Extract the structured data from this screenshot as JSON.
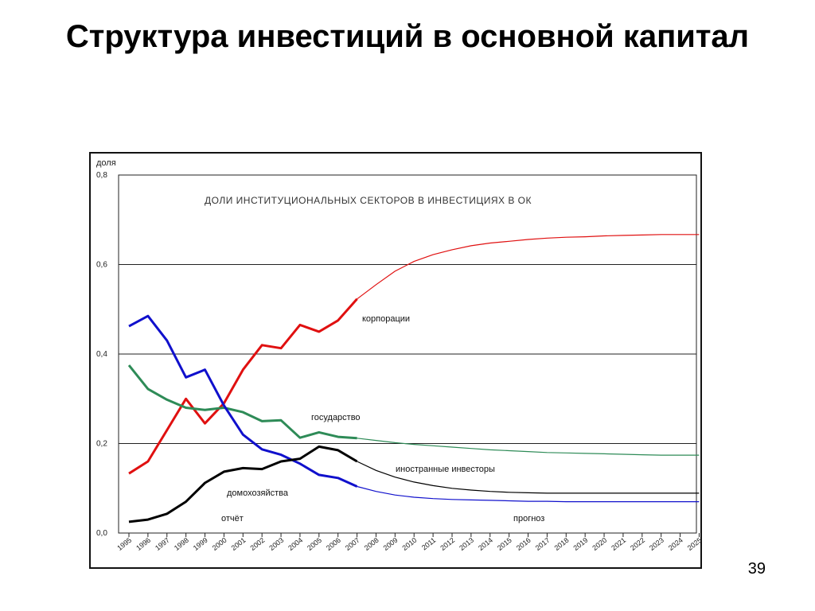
{
  "slide": {
    "title": "Структура инвестиций в основной капитал",
    "page_number": "39"
  },
  "chart_data": {
    "type": "line",
    "title": "ДОЛИ ИНСТИТУЦИОНАЛЬНЫХ СЕКТОРОВ В ИНВЕСТИЦИЯХ В ОК",
    "ylabel": "доля",
    "xlabel": "",
    "ylim": [
      0,
      0.8
    ],
    "yticks": [
      "0,0",
      "0,2",
      "0,4",
      "0,6",
      "0,8"
    ],
    "grid": "horizontal",
    "categories": [
      "1995",
      "1996",
      "1997",
      "1998",
      "1999",
      "2000",
      "2001",
      "2002",
      "2003",
      "2004",
      "2005",
      "2006",
      "2007",
      "2008",
      "2009",
      "2010",
      "2011",
      "2012",
      "2013",
      "2014",
      "2015",
      "2016",
      "2017",
      "2018",
      "2019",
      "2020",
      "2021",
      "2022",
      "2023",
      "2024",
      "2025"
    ],
    "report_label": "отчёт",
    "forecast_label": "прогноз",
    "series": [
      {
        "name": "корпорации",
        "color": "#e01010",
        "actual_end_index": 13,
        "values": [
          0.133,
          0.16,
          0.23,
          0.3,
          0.245,
          0.29,
          0.365,
          0.42,
          0.413,
          0.465,
          0.45,
          0.475,
          0.523,
          0.555,
          0.585,
          0.607,
          0.622,
          0.633,
          0.642,
          0.648,
          0.652,
          0.656,
          0.659,
          0.661,
          0.662,
          0.664,
          0.665,
          0.666,
          0.667,
          0.667,
          0.667
        ]
      },
      {
        "name": "государство",
        "color": "#2e8b57",
        "actual_end_index": 13,
        "values": [
          0.375,
          0.322,
          0.298,
          0.28,
          0.275,
          0.28,
          0.27,
          0.25,
          0.252,
          0.213,
          0.225,
          0.215,
          0.212,
          0.207,
          0.202,
          0.198,
          0.195,
          0.192,
          0.189,
          0.186,
          0.184,
          0.182,
          0.18,
          0.179,
          0.178,
          0.177,
          0.176,
          0.175,
          0.174,
          0.174,
          0.174
        ]
      },
      {
        "name": "иностранные инвесторы",
        "color": "#1010cc",
        "actual_end_index": 13,
        "values": [
          0.462,
          0.485,
          0.43,
          0.348,
          0.365,
          0.285,
          0.22,
          0.187,
          0.175,
          0.155,
          0.13,
          0.123,
          0.104,
          0.093,
          0.085,
          0.08,
          0.077,
          0.075,
          0.074,
          0.073,
          0.072,
          0.071,
          0.071,
          0.07,
          0.07,
          0.07,
          0.07,
          0.07,
          0.07,
          0.07,
          0.07
        ]
      },
      {
        "name": "домохозяйства",
        "color": "#000000",
        "actual_end_index": 13,
        "values": [
          0.025,
          0.03,
          0.043,
          0.07,
          0.112,
          0.137,
          0.145,
          0.143,
          0.16,
          0.166,
          0.193,
          0.185,
          0.16,
          0.14,
          0.125,
          0.114,
          0.106,
          0.1,
          0.096,
          0.093,
          0.091,
          0.09,
          0.089,
          0.089,
          0.089,
          0.089,
          0.089,
          0.089,
          0.089,
          0.089,
          0.089
        ]
      }
    ]
  }
}
